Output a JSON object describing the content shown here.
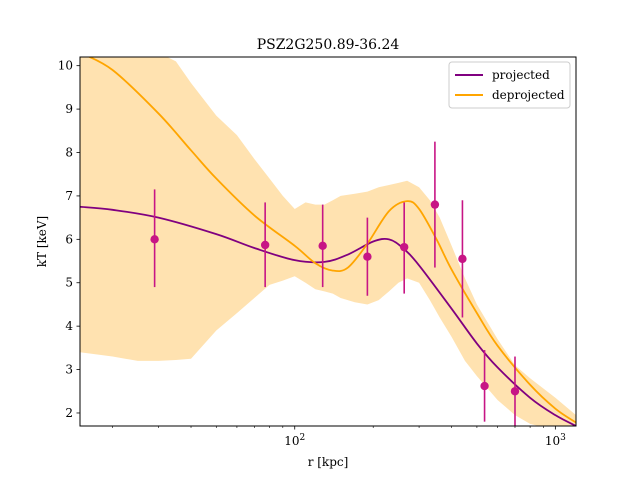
{
  "chart_data": {
    "type": "line",
    "title": "PSZ2G250.89-36.24",
    "xlabel": "r [kpc]",
    "ylabel": "kT [keV]",
    "xscale": "log",
    "xlim": [
      15,
      1200
    ],
    "ylim": [
      1.7,
      10.2
    ],
    "x_tick_labels": [
      {
        "value": 100,
        "base": "10",
        "exp": "2"
      },
      {
        "value": 1000,
        "base": "10",
        "exp": "3"
      }
    ],
    "y_ticks": [
      2,
      3,
      4,
      5,
      6,
      7,
      8,
      9,
      10
    ],
    "grid": false,
    "legend": {
      "placement": "top-right",
      "entries": [
        {
          "label": "projected",
          "color": "#800080"
        },
        {
          "label": "deprojected",
          "color": "#FFA500"
        }
      ]
    },
    "series": [
      {
        "name": "projected",
        "color": "#800080",
        "x": [
          15,
          20,
          30,
          50,
          70,
          100,
          130,
          160,
          200,
          230,
          260,
          300,
          400,
          500,
          600,
          800,
          1000,
          1200
        ],
        "y": [
          6.75,
          6.68,
          6.5,
          6.12,
          5.8,
          5.52,
          5.48,
          5.65,
          5.95,
          6.0,
          5.8,
          5.4,
          4.4,
          3.6,
          3.05,
          2.35,
          1.95,
          1.7
        ]
      },
      {
        "name": "deprojected",
        "color": "#FFA500",
        "x": [
          15,
          20,
          30,
          40,
          50,
          70,
          100,
          120,
          140,
          160,
          190,
          230,
          270,
          300,
          350,
          400,
          500,
          600,
          800,
          1000,
          1200
        ],
        "y": [
          10.3,
          9.9,
          8.9,
          8.05,
          7.4,
          6.55,
          5.85,
          5.45,
          5.28,
          5.35,
          5.9,
          6.65,
          6.88,
          6.7,
          6.0,
          5.3,
          4.3,
          3.55,
          2.65,
          2.1,
          1.78
        ]
      }
    ],
    "uncertainty_band": {
      "series": "deprojected",
      "color": "#FFE2B0",
      "x": [
        15,
        20,
        25,
        30,
        35,
        40,
        50,
        60,
        70,
        80,
        90,
        100,
        110,
        120,
        130,
        140,
        150,
        170,
        190,
        210,
        230,
        250,
        270,
        300,
        330,
        360,
        400,
        450,
        500,
        600,
        700,
        800,
        1000,
        1200
      ],
      "upper": [
        10.3,
        10.3,
        10.3,
        10.3,
        10.1,
        9.6,
        8.85,
        8.4,
        7.85,
        7.4,
        7.0,
        6.7,
        6.85,
        6.8,
        6.8,
        6.9,
        7.0,
        7.05,
        7.1,
        7.2,
        7.25,
        7.3,
        7.35,
        7.2,
        6.9,
        6.5,
        5.85,
        5.1,
        4.5,
        3.7,
        3.1,
        2.8,
        2.35,
        1.95
      ],
      "lower": [
        3.4,
        3.3,
        3.2,
        3.2,
        3.22,
        3.25,
        3.9,
        4.3,
        4.65,
        4.95,
        5.05,
        5.15,
        5.0,
        4.85,
        4.8,
        4.75,
        4.65,
        4.55,
        4.5,
        4.6,
        4.8,
        5.0,
        5.1,
        5.0,
        4.6,
        4.2,
        3.75,
        3.2,
        2.85,
        2.3,
        1.95,
        1.75,
        1.6,
        1.5
      ]
    },
    "data_points": {
      "color": "#C71585",
      "points": [
        {
          "x": 29,
          "y": 6.0,
          "ylo": 4.9,
          "yhi": 7.15
        },
        {
          "x": 77,
          "y": 5.87,
          "ylo": 4.9,
          "yhi": 6.85
        },
        {
          "x": 128,
          "y": 5.85,
          "ylo": 4.9,
          "yhi": 6.8
        },
        {
          "x": 190,
          "y": 5.6,
          "ylo": 4.7,
          "yhi": 6.5
        },
        {
          "x": 263,
          "y": 5.82,
          "ylo": 4.75,
          "yhi": 6.85
        },
        {
          "x": 345,
          "y": 6.8,
          "ylo": 5.35,
          "yhi": 8.25
        },
        {
          "x": 440,
          "y": 5.55,
          "ylo": 4.2,
          "yhi": 6.9
        },
        {
          "x": 535,
          "y": 2.62,
          "ylo": 1.8,
          "yhi": 3.45
        },
        {
          "x": 700,
          "y": 2.5,
          "ylo": 1.7,
          "yhi": 3.3
        }
      ]
    }
  }
}
